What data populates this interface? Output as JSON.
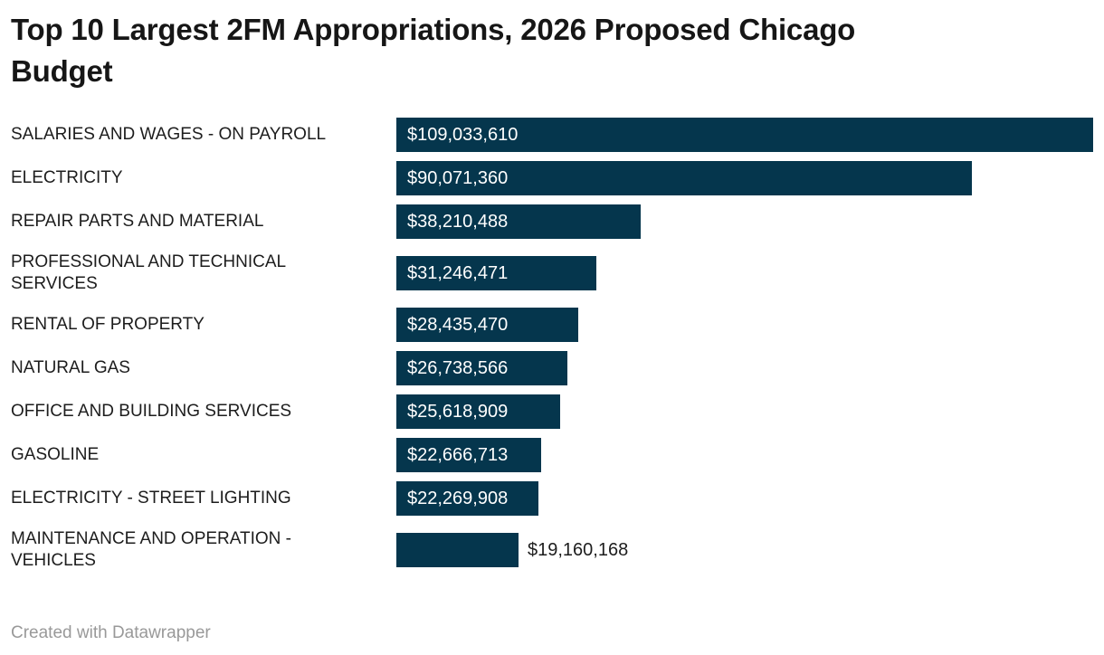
{
  "header": {
    "title": "Top 10 Largest 2FM Appropriations, 2026 Proposed Chicago\nBudget"
  },
  "footer": {
    "attribution": "Created with Datawrapper"
  },
  "colors": {
    "bar": "#05364d",
    "title": "#161616",
    "label": "#1d1d1d",
    "value_inside": "#ffffff",
    "value_outside": "#1d1d1d",
    "attribution": "#999999"
  },
  "chart_data": {
    "type": "bar",
    "orientation": "horizontal",
    "title": "Top 10 Largest 2FM Appropriations, 2026 Proposed Chicago Budget",
    "categories": [
      "SALARIES AND WAGES - ON PAYROLL",
      "ELECTRICITY",
      "REPAIR PARTS AND MATERIAL",
      "PROFESSIONAL AND TECHNICAL\nSERVICES",
      "RENTAL OF PROPERTY",
      "NATURAL GAS",
      "OFFICE AND BUILDING SERVICES",
      "GASOLINE",
      "ELECTRICITY - STREET LIGHTING",
      "MAINTENANCE AND OPERATION -\nVEHICLES"
    ],
    "values": [
      109033610,
      90071360,
      38210488,
      31246471,
      28435470,
      26738566,
      25618909,
      22666713,
      22269908,
      19160168
    ],
    "value_labels": [
      "$109,033,610",
      "$90,071,360",
      "$38,210,488",
      "$31,246,471",
      "$28,435,470",
      "$26,738,566",
      "$25,618,909",
      "$22,666,713",
      "$22,269,908",
      "$19,160,168"
    ],
    "xlim": [
      0,
      109033610
    ],
    "grid": false,
    "legend": false,
    "value_label_placement": "inside-start, outside for shortest bar"
  }
}
